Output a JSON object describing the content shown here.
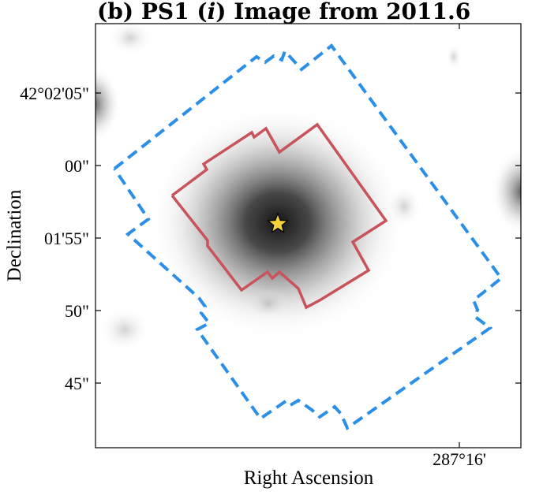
{
  "figure": {
    "title_prefix": "(b) PS1 (",
    "title_filter": "i",
    "title_suffix": ") Image from 2011.6",
    "x_axis_label": "Right Ascension",
    "y_axis_label": "Declination",
    "x_tick_labels": [
      "287°16'"
    ],
    "y_tick_labels": [
      "42°02'05\"",
      "00\"",
      "01'55\"",
      "50\"",
      "45\""
    ]
  },
  "colors": {
    "outer_region": "#2b8fe8",
    "inner_region": "#c8535a",
    "star_marker": "#f7d13a",
    "star_outline": "#000000"
  },
  "icons": {
    "target_marker": "star-icon"
  }
}
